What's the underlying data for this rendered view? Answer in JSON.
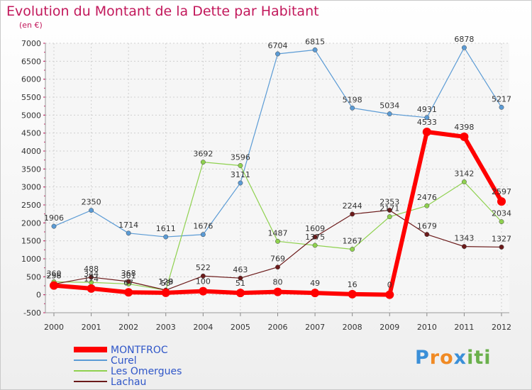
{
  "chart_data": {
    "type": "line",
    "title": "Evolution du Montant de la Dette par Habitant",
    "subtitle": "(en €)",
    "categories": [
      "2000",
      "2001",
      "2002",
      "2003",
      "2004",
      "2005",
      "2006",
      "2007",
      "2008",
      "2009",
      "2010",
      "2011",
      "2012"
    ],
    "ylim": [
      -500,
      7000
    ],
    "yticks": [
      -500,
      0,
      500,
      1000,
      1500,
      2000,
      2500,
      3000,
      3500,
      4000,
      4500,
      5000,
      5500,
      6000,
      6500,
      7000
    ],
    "grid": true,
    "legend_position": "bottom-left",
    "series": [
      {
        "name": "Curel",
        "color": "#5b9bd5",
        "values": [
          1906,
          2350,
          1714,
          1611,
          1676,
          3111,
          6704,
          6815,
          5198,
          5034,
          4931,
          6878,
          5217
        ]
      },
      {
        "name": "Les Omergues",
        "color": "#8fd14f",
        "values": [
          360,
          344,
          301,
          128,
          3692,
          3596,
          1487,
          1375,
          1267,
          2171,
          2476,
          3142,
          2034
        ]
      },
      {
        "name": "Lachau",
        "color": "#6b1a1a",
        "values": [
          296,
          488,
          368,
          129,
          522,
          463,
          769,
          1609,
          2244,
          2353,
          1679,
          1343,
          1327
        ]
      },
      {
        "name": "MONTFROC",
        "color": "#ff0000",
        "values": [
          258,
          174,
          67,
          55,
          100,
          51,
          80,
          49,
          16,
          0,
          4533,
          4398,
          2597
        ]
      }
    ]
  },
  "legend": {
    "items": [
      "MONTFROC",
      "Curel",
      "Les Omergues",
      "Lachau"
    ]
  },
  "logo": {
    "text": "Proxiti"
  }
}
